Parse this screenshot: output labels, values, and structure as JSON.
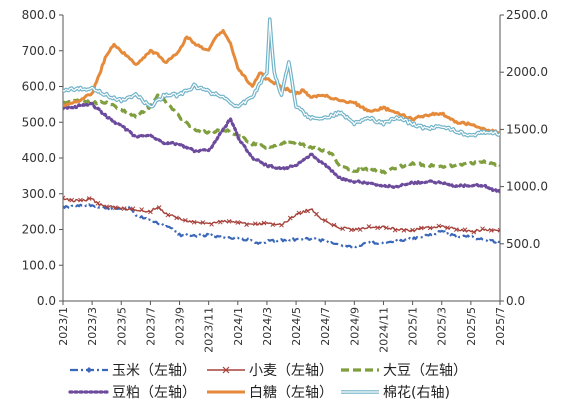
{
  "chart_data": {
    "type": "line",
    "title": "",
    "xlabel": "",
    "ylabel_left": "",
    "ylabel_right": "",
    "ylim_left": [
      0,
      800
    ],
    "ylim_right": [
      0,
      2500
    ],
    "yticks_left": [
      "0.0",
      "100.0",
      "200.0",
      "300.0",
      "400.0",
      "500.0",
      "600.0",
      "700.0",
      "800.0"
    ],
    "yticks_right": [
      "0.0",
      "500.0",
      "1000.0",
      "1500.0",
      "2000.0",
      "2500.0"
    ],
    "x_ticks": [
      "2023/1",
      "2023/3",
      "2023/5",
      "2023/7",
      "2023/9",
      "2023/11",
      "2024/1",
      "2024/3",
      "2024/5",
      "2024/7",
      "2024/9",
      "2024/11",
      "2025/1",
      "2025/3",
      "2025/5",
      "2025/7"
    ],
    "grid": false,
    "legend_position": "bottom",
    "series": [
      {
        "name": "玉米（左轴）",
        "axis": "left",
        "color": "#3a67b8",
        "style": "dashdot",
        "x": [
          0,
          1,
          2,
          3,
          4,
          4.5,
          5,
          6,
          7,
          7.5,
          8,
          9,
          10,
          10.5,
          11,
          12,
          13,
          13.5,
          14,
          15,
          16,
          17,
          18,
          18.5,
          19,
          20,
          21,
          22,
          23,
          24,
          25,
          26,
          27,
          28,
          29,
          30
        ],
        "values": [
          262,
          265,
          268,
          258,
          255,
          265,
          240,
          225,
          210,
          200,
          185,
          182,
          185,
          180,
          178,
          175,
          170,
          160,
          168,
          170,
          172,
          175,
          168,
          163,
          155,
          150,
          165,
          162,
          168,
          175,
          182,
          195,
          180,
          180,
          170,
          165
        ]
      },
      {
        "name": "小麦（左轴）",
        "axis": "left",
        "color": "#a6423c",
        "style": "cross",
        "x": [
          0,
          1,
          2,
          2.5,
          3,
          4,
          5,
          6,
          6.5,
          7,
          8,
          9,
          10,
          11,
          12,
          13,
          14,
          15,
          16,
          17,
          17.5,
          18,
          19,
          20,
          21,
          22,
          23,
          24,
          25,
          26,
          27,
          28,
          29,
          30
        ],
        "values": [
          285,
          280,
          285,
          270,
          265,
          260,
          255,
          250,
          265,
          245,
          230,
          220,
          215,
          225,
          220,
          212,
          218,
          215,
          240,
          258,
          240,
          222,
          205,
          200,
          205,
          208,
          200,
          198,
          205,
          210,
          200,
          195,
          200,
          198
        ]
      },
      {
        "name": "大豆（左轴）",
        "axis": "left",
        "color": "#7f9e3e",
        "style": "dash",
        "x": [
          0,
          1,
          2,
          3,
          4,
          5,
          6,
          6.5,
          7,
          8,
          9,
          10,
          11,
          12,
          13,
          14,
          15,
          16,
          17,
          18,
          18.5,
          19,
          20,
          21,
          22,
          23,
          24,
          25,
          26,
          27,
          28,
          29,
          30
        ],
        "values": [
          555,
          560,
          555,
          555,
          535,
          515,
          545,
          575,
          560,
          515,
          480,
          470,
          480,
          465,
          440,
          430,
          440,
          445,
          430,
          420,
          410,
          375,
          365,
          370,
          360,
          375,
          385,
          380,
          375,
          380,
          385,
          390,
          380
        ]
      },
      {
        "name": "豆粕（左轴）",
        "axis": "left",
        "color": "#6c4a9c",
        "style": "dot",
        "x": [
          0,
          1,
          2,
          3,
          4,
          5,
          6,
          7,
          8,
          9,
          10,
          11,
          11.5,
          12,
          13,
          14,
          15,
          16,
          17,
          18,
          19,
          20,
          21,
          22,
          23,
          24,
          25,
          26,
          27,
          28,
          29,
          30
        ],
        "values": [
          540,
          545,
          550,
          515,
          490,
          460,
          465,
          440,
          440,
          420,
          420,
          480,
          510,
          460,
          400,
          380,
          370,
          380,
          410,
          380,
          345,
          335,
          330,
          320,
          320,
          330,
          335,
          330,
          320,
          325,
          320,
          305
        ]
      },
      {
        "name": "白糖（左轴）",
        "axis": "left",
        "color": "#e58a3a",
        "style": "solid",
        "x": [
          0,
          1,
          2,
          3,
          3.5,
          4,
          5,
          6,
          6.5,
          7,
          8,
          8.5,
          9,
          10,
          10.5,
          11,
          11.5,
          12,
          13,
          13.5,
          14,
          15,
          16,
          16.5,
          17,
          18,
          19,
          20,
          21,
          22,
          23,
          24,
          25,
          26,
          27,
          28,
          29,
          30
        ],
        "values": [
          545,
          560,
          580,
          690,
          715,
          700,
          660,
          700,
          690,
          665,
          700,
          740,
          720,
          700,
          740,
          755,
          720,
          650,
          600,
          640,
          620,
          600,
          580,
          590,
          570,
          575,
          560,
          555,
          530,
          540,
          525,
          510,
          520,
          525,
          500,
          495,
          480,
          470
        ]
      },
      {
        "name": "棉花(右轴)",
        "axis": "right",
        "color": "#71b3c9",
        "style": "double",
        "x": [
          0,
          1,
          2,
          3,
          4,
          5,
          6,
          7,
          8,
          9,
          10,
          11,
          12,
          13,
          13.5,
          14,
          14.2,
          14.5,
          15,
          15.5,
          15.8,
          16,
          17,
          18,
          19,
          20,
          21,
          22,
          23,
          24,
          25,
          26,
          27,
          28,
          29,
          30
        ],
        "values": [
          1850,
          1850,
          1860,
          1800,
          1750,
          1800,
          1700,
          1800,
          1800,
          1880,
          1830,
          1780,
          1700,
          1780,
          1900,
          2000,
          2450,
          2000,
          1800,
          2100,
          1850,
          1700,
          1600,
          1600,
          1650,
          1550,
          1600,
          1550,
          1600,
          1550,
          1500,
          1530,
          1480,
          1450,
          1480,
          1460
        ]
      }
    ]
  }
}
